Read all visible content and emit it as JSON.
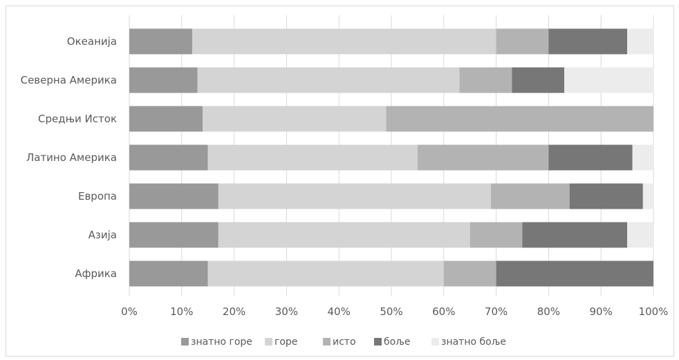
{
  "chart_data": {
    "type": "bar",
    "orientation": "horizontal",
    "stacked": "100%",
    "categories": [
      "Океанија",
      "Северна Америка",
      "Средњи Исток",
      "Латино Америка",
      "Европа",
      "Азија",
      "Африка"
    ],
    "series": [
      {
        "name": "знатно горе",
        "color": "#999999",
        "values": [
          12,
          13,
          14,
          15,
          17,
          17,
          15
        ]
      },
      {
        "name": "горе",
        "color": "#d4d4d4",
        "values": [
          58,
          50,
          35,
          40,
          52,
          48,
          45
        ]
      },
      {
        "name": "исто",
        "color": "#b3b3b3",
        "values": [
          10,
          10,
          51,
          25,
          15,
          10,
          10
        ]
      },
      {
        "name": "боље",
        "color": "#777777",
        "values": [
          15,
          10,
          0,
          16,
          14,
          20,
          30
        ]
      },
      {
        "name": "знатно боље",
        "color": "#ececec",
        "values": [
          5,
          17,
          0,
          4,
          2,
          5,
          0
        ]
      }
    ],
    "xlim": [
      0,
      100
    ],
    "x_ticks": [
      "0%",
      "10%",
      "20%",
      "30%",
      "40%",
      "50%",
      "60%",
      "70%",
      "80%",
      "90%",
      "100%"
    ],
    "grid": true,
    "legend_position": "bottom",
    "title": "",
    "xlabel": "",
    "ylabel": ""
  }
}
